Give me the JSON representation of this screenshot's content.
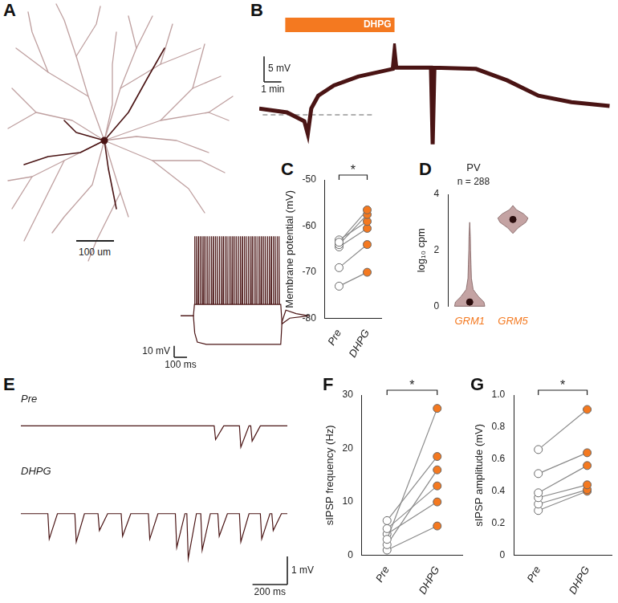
{
  "morphology": {
    "panel": "A",
    "scale_bar": "100 um"
  },
  "chart_data": [
    {
      "type": "line",
      "tick_labels": false,
      "xlim": [
        0,
        1000
      ],
      "ylim": [
        -100,
        15
      ],
      "series": [
        {
          "color": "#4a1414",
          "x": [
            0,
            100,
            780,
            790,
            850,
            1000
          ],
          "values": [
            -65,
            -65,
            -55,
            -72,
            -67,
            -65
          ],
          "spike_times": [
            108,
            122,
            137,
            151,
            166,
            180,
            195,
            210,
            225,
            240,
            255,
            270,
            285,
            300,
            315,
            330,
            345,
            360,
            375,
            390,
            405,
            420,
            435,
            450,
            465,
            480,
            495,
            510,
            525,
            540,
            555,
            570,
            585,
            600,
            615,
            630,
            645,
            660,
            675,
            690,
            705,
            720,
            735,
            750,
            765
          ],
          "spike_peak": 5,
          "spike_trough": -55
        },
        {
          "color": "#4a1414",
          "x": [
            0,
            100,
            110,
            130,
            200,
            780,
            790,
            820,
            900,
            1000
          ],
          "values": [
            -65,
            -65,
            -80,
            -88,
            -90,
            -90,
            -70,
            -60,
            -63,
            -65
          ]
        }
      ],
      "scale_bars": [
        {
          "axis": "y",
          "value": 10,
          "label": "10 mV"
        },
        {
          "axis": "x",
          "value": 100,
          "label": "100 ms"
        }
      ]
    },
    {
      "panel": "B",
      "type": "line",
      "tick_labels": false,
      "xlim": [
        0,
        20.5
      ],
      "ylim": [
        -8,
        14
      ],
      "series": [
        {
          "color": "#4a1414",
          "x": [
            0,
            1.6,
            2.6,
            2.8,
            3.0,
            3.4,
            4.3,
            5.7,
            7.7,
            7.8,
            7.9,
            8.0,
            9.9,
            10.0,
            10.1,
            12.5,
            14.3,
            16.1,
            18.0,
            20.2
          ],
          "values": [
            1.25,
            0.5,
            -1.25,
            -3.75,
            1.25,
            3.75,
            5.75,
            7.5,
            9,
            12.5,
            9.25,
            9.25,
            9.25,
            -5.75,
            9.25,
            9,
            6.75,
            3.75,
            2.5,
            1.75
          ]
        }
      ],
      "reference_lines": [
        {
          "value": 0,
          "from": 0.2,
          "to": 6.6,
          "color": "#b0b0b0"
        },
        {
          "value": 8.75,
          "from": 5.5,
          "to": 13.5,
          "color": "#ffffff"
        }
      ],
      "application_bar": {
        "label": "DHPG",
        "start": 1.5,
        "end": 7.8,
        "color": "#f47920"
      },
      "scale_bars": [
        {
          "axis": "y",
          "value": 5,
          "label": "5 mV"
        },
        {
          "axis": "x",
          "value": 1,
          "label": "1 min"
        }
      ]
    },
    {
      "panel": "C",
      "type": "paired",
      "categories": [
        "Pre",
        "DHPG"
      ],
      "ylabel": "Membrane potential (mV)",
      "ylim": [
        -80,
        -50
      ],
      "yticks": [
        -80,
        -70,
        -60,
        -50
      ],
      "colors": [
        "#ffffff",
        "#f47920"
      ],
      "series": [
        {
          "values": [
            -63.5,
            -56.5
          ]
        },
        {
          "values": [
            -64,
            -57.5
          ]
        },
        {
          "values": [
            -63,
            -59
          ]
        },
        {
          "values": [
            -64.5,
            -60.5
          ]
        },
        {
          "values": [
            -69,
            -64
          ]
        },
        {
          "values": [
            -73,
            -70
          ]
        }
      ],
      "significance": "*"
    },
    {
      "panel": "D",
      "type": "violin",
      "title": "PV",
      "subtitle": "n = 288",
      "categories": [
        "GRM1",
        "GRM5"
      ],
      "ylabel": "log₁₀ cpm",
      "ylim": [
        0,
        4
      ],
      "yticks": [
        0,
        2,
        4
      ],
      "color": "#c4a3a3",
      "medians": [
        0.15,
        3.1
      ],
      "violins": [
        {
          "y": [
            0,
            0.15,
            0.35,
            0.6,
            1,
            1.5,
            2,
            2.5,
            3
          ],
          "half_width": [
            0.35,
            0.33,
            0.2,
            0.08,
            0.04,
            0.03,
            0.02,
            0.015,
            0
          ]
        },
        {
          "y": [
            2.6,
            2.8,
            3.0,
            3.15,
            3.3,
            3.45,
            3.6
          ],
          "half_width": [
            0,
            0.12,
            0.3,
            0.35,
            0.25,
            0.08,
            0
          ]
        }
      ]
    },
    {
      "panel": "E",
      "type": "line",
      "title": "Pre",
      "tick_labels": false,
      "xlim": [
        0,
        1530
      ],
      "ylim": [
        -1.2,
        0.6
      ],
      "series": [
        {
          "color": "#4a1414",
          "baseline": 0,
          "event_times": [
            1110,
            1255,
            1320
          ],
          "event_amplitudes": [
            -0.45,
            -0.7,
            -0.5
          ]
        }
      ]
    },
    {
      "type": "line",
      "title": "DHPG",
      "tick_labels": false,
      "xlim": [
        0,
        1530
      ],
      "ylim": [
        -2.4,
        1.2
      ],
      "series": [
        {
          "color": "#4a1414",
          "baseline": 0,
          "event_times": [
            155,
            310,
            443,
            576,
            732,
            887,
            953,
            1033,
            1131,
            1255,
            1375,
            1441
          ],
          "event_amplitudes": [
            -0.9,
            -1.0,
            -0.6,
            -0.8,
            -0.9,
            -1.2,
            -1.6,
            -1.3,
            -0.8,
            -1.0,
            -0.9,
            -0.6
          ]
        }
      ],
      "scale_bars": [
        {
          "axis": "y",
          "value": 1,
          "label": "1 mV"
        },
        {
          "axis": "x",
          "value": 200,
          "label": "200 ms"
        }
      ]
    },
    {
      "panel": "F",
      "type": "paired",
      "categories": [
        "Pre",
        "DHPG"
      ],
      "ylabel": "sIPSP frequency (Hz)",
      "ylim": [
        0,
        30
      ],
      "yticks": [
        0,
        10,
        20,
        30
      ],
      "colors": [
        "#ffffff",
        "#f47920"
      ],
      "series": [
        {
          "values": [
            3,
            27.5
          ]
        },
        {
          "values": [
            6.5,
            18.5
          ]
        },
        {
          "values": [
            2,
            16
          ]
        },
        {
          "values": [
            5,
            13
          ]
        },
        {
          "values": [
            4,
            10
          ]
        },
        {
          "values": [
            1,
            5.5
          ]
        }
      ],
      "significance": "*"
    },
    {
      "panel": "G",
      "type": "paired",
      "categories": [
        "Pre",
        "DHPG"
      ],
      "ylabel": "sIPSP amplitude (mV)",
      "ylim": [
        0,
        1
      ],
      "yticks": [
        0,
        0.2,
        0.4,
        0.6,
        0.8,
        {
          "value": 1,
          "label": "1.0"
        }
      ],
      "colors": [
        "#ffffff",
        "#f47920"
      ],
      "series": [
        {
          "values": [
            0.66,
            0.91
          ]
        },
        {
          "values": [
            0.51,
            0.64
          ]
        },
        {
          "values": [
            0.39,
            0.56
          ]
        },
        {
          "values": [
            0.36,
            0.44
          ]
        },
        {
          "values": [
            0.32,
            0.41
          ]
        },
        {
          "values": [
            0.28,
            0.4
          ]
        }
      ],
      "significance": "*"
    }
  ]
}
